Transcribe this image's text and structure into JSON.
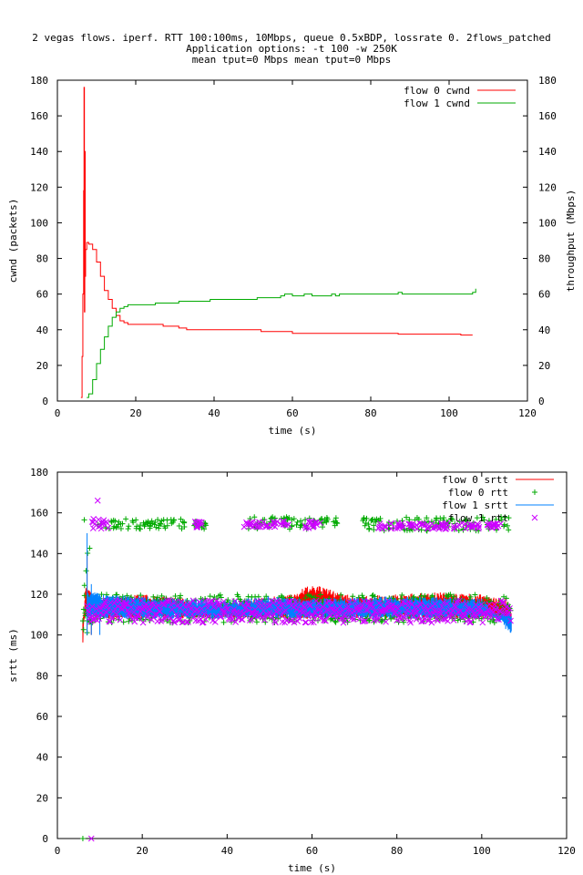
{
  "title_lines": [
    "2 vegas flows. iperf. RTT 100:100ms, 10Mbps, queue 0.5xBDP, lossrate 0. 2flows_patched",
    "Application options: -t 100 -w 250K",
    "mean tput=0 Mbps mean tput=0 Mbps"
  ],
  "chart_data": [
    {
      "type": "line",
      "xlabel": "time (s)",
      "ylabel": "cwnd (packets)",
      "y2label": "throughput (Mbps)",
      "xlim": [
        0,
        120
      ],
      "ylim": [
        0,
        180
      ],
      "y2lim": [
        0,
        180
      ],
      "xticks": [
        0,
        20,
        40,
        60,
        80,
        100,
        120
      ],
      "yticks": [
        0,
        20,
        40,
        60,
        80,
        100,
        120,
        140,
        160,
        180
      ],
      "legend_position": "top-right",
      "grid": false,
      "series": [
        {
          "name": "flow 0 cwnd",
          "color": "#ff0000",
          "style": "step",
          "points": [
            [
              6.0,
              2
            ],
            [
              6.3,
              25
            ],
            [
              6.5,
              60
            ],
            [
              6.7,
              118
            ],
            [
              6.8,
              176
            ],
            [
              6.9,
              50
            ],
            [
              7.0,
              140
            ],
            [
              7.1,
              70
            ],
            [
              7.2,
              85
            ],
            [
              7.5,
              89
            ],
            [
              8.0,
              88
            ],
            [
              9.0,
              85
            ],
            [
              10.0,
              78
            ],
            [
              11.0,
              70
            ],
            [
              12.0,
              62
            ],
            [
              13.0,
              57
            ],
            [
              14.0,
              52
            ],
            [
              15.0,
              48
            ],
            [
              16.0,
              45
            ],
            [
              17.0,
              44
            ],
            [
              18.0,
              43
            ],
            [
              25.0,
              43
            ],
            [
              27.0,
              42
            ],
            [
              31.0,
              41
            ],
            [
              33.0,
              40
            ],
            [
              44.0,
              40
            ],
            [
              52.0,
              39
            ],
            [
              60.0,
              38
            ],
            [
              87.0,
              37.5
            ],
            [
              103.0,
              37
            ],
            [
              106.0,
              37
            ]
          ]
        },
        {
          "name": "flow 1 cwnd",
          "color": "#00aa00",
          "style": "step",
          "points": [
            [
              7.5,
              2
            ],
            [
              8.0,
              4
            ],
            [
              9.0,
              12
            ],
            [
              10.0,
              21
            ],
            [
              11.0,
              29
            ],
            [
              12.0,
              36
            ],
            [
              13.0,
              42
            ],
            [
              14.0,
              47
            ],
            [
              15.0,
              50
            ],
            [
              16.0,
              52
            ],
            [
              17.0,
              53
            ],
            [
              18.0,
              54
            ],
            [
              25.0,
              55
            ],
            [
              31.0,
              56
            ],
            [
              39.0,
              57
            ],
            [
              51.0,
              58
            ],
            [
              57.0,
              59
            ],
            [
              58.0,
              60
            ],
            [
              60.0,
              59
            ],
            [
              63.0,
              60
            ],
            [
              65.0,
              59
            ],
            [
              70.0,
              60
            ],
            [
              71.0,
              59
            ],
            [
              72.0,
              60
            ],
            [
              87.0,
              61
            ],
            [
              88.0,
              60
            ],
            [
              105.0,
              60
            ],
            [
              106.0,
              61
            ],
            [
              106.8,
              63
            ]
          ]
        }
      ]
    },
    {
      "type": "line",
      "xlabel": "time (s)",
      "ylabel": "srtt (ms)",
      "xlim": [
        0,
        120
      ],
      "ylim": [
        0,
        180
      ],
      "xticks": [
        0,
        20,
        40,
        60,
        80,
        100,
        120
      ],
      "yticks": [
        0,
        20,
        40,
        60,
        80,
        100,
        120,
        140,
        160,
        180
      ],
      "legend_position": "top-right",
      "grid": false,
      "series": [
        {
          "name": "flow 0 srtt",
          "color": "#ff0000",
          "style": "dense-line",
          "x_range": [
            6,
            107
          ],
          "band": [
            108,
            124
          ],
          "points": [
            [
              6,
              100
            ],
            [
              7,
              140
            ],
            [
              8,
              118
            ],
            [
              20,
              120
            ],
            [
              30,
              118
            ],
            [
              33,
              115
            ],
            [
              40,
              116
            ],
            [
              55,
              120
            ],
            [
              60,
              125
            ],
            [
              70,
              119
            ],
            [
              80,
              120
            ],
            [
              90,
              121
            ],
            [
              100,
              120
            ],
            [
              106,
              118
            ],
            [
              107,
              103
            ]
          ]
        },
        {
          "name": "flow 0 rtt",
          "color": "#00aa00",
          "style": "markers-plus",
          "x_range": [
            6,
            107
          ],
          "band": [
            106,
            120
          ],
          "outlier_clusters": [
            {
              "x": [
                6,
                8
              ],
              "y": [
                100,
                158
              ]
            },
            {
              "x": [
                9,
                30
              ],
              "y": [
                152,
                157
              ]
            },
            {
              "x": [
                32,
                35
              ],
              "y": [
                152,
                156
              ]
            },
            {
              "x": [
                45,
                60
              ],
              "y": [
                152,
                158
              ]
            },
            {
              "x": [
                60,
                66
              ],
              "y": [
                153,
                159
              ]
            },
            {
              "x": [
                72,
                107
              ],
              "y": [
                151,
                158
              ]
            }
          ],
          "extra_points": [
            [
              6,
              0
            ]
          ]
        },
        {
          "name": "flow 1 srtt",
          "color": "#0080ff",
          "style": "dense-line",
          "x_range": [
            7,
            107
          ],
          "band": [
            108,
            122
          ],
          "points": [
            [
              7,
              150
            ],
            [
              8,
              125
            ],
            [
              10,
              120
            ],
            [
              20,
              119
            ],
            [
              40,
              117
            ],
            [
              50,
              119
            ],
            [
              60,
              118
            ],
            [
              80,
              119
            ],
            [
              100,
              118
            ],
            [
              107,
              104
            ]
          ]
        },
        {
          "name": "flow 1 rtt",
          "color": "#cc00ff",
          "style": "markers-x",
          "x_range": [
            7,
            107
          ],
          "band": [
            106,
            117
          ],
          "outlier_clusters": [
            {
              "x": [
                8,
                12
              ],
              "y": [
                152,
                157
              ]
            },
            {
              "x": [
                32,
                34
              ],
              "y": [
                152,
                156
              ]
            },
            {
              "x": [
                44,
                55
              ],
              "y": [
                153,
                156
              ]
            },
            {
              "x": [
                58,
                62
              ],
              "y": [
                152,
                156
              ]
            },
            {
              "x": [
                75,
                105
              ],
              "y": [
                152,
                155
              ]
            }
          ],
          "extra_points": [
            [
              8,
              0
            ],
            [
              9.5,
              166
            ]
          ]
        }
      ]
    }
  ]
}
